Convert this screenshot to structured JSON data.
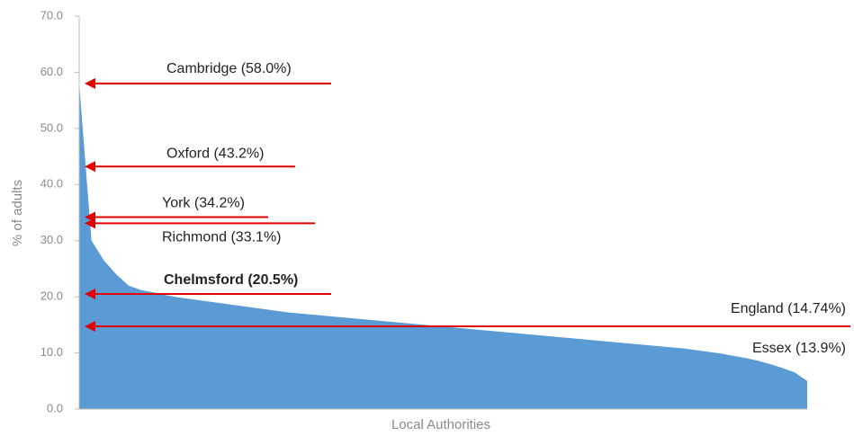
{
  "chart_data": {
    "type": "area",
    "xlabel": "Local Authorities",
    "ylabel": "% of adults",
    "color": "#5b9bd5",
    "arrow_color": "#e00000",
    "values": [
      58,
      30,
      26.5,
      24,
      22,
      21.2,
      20.8,
      20.3,
      19.9,
      19.6,
      19.3,
      19.0,
      18.7,
      18.4,
      18.1,
      17.8,
      17.5,
      17.2,
      17.0,
      16.8,
      16.6,
      16.4,
      16.2,
      16.0,
      15.8,
      15.6,
      15.4,
      15.2,
      15.0,
      14.8,
      14.6,
      14.4,
      14.2,
      14.0,
      13.8,
      13.6,
      13.4,
      13.2,
      13.0,
      12.8,
      12.6,
      12.4,
      12.2,
      12.0,
      11.8,
      11.6,
      11.4,
      11.2,
      11.0,
      10.8,
      10.5,
      10.2,
      9.9,
      9.5,
      9.1,
      8.6,
      8.0,
      7.3,
      6.5,
      5.0
    ],
    "ylim": [
      0,
      70
    ],
    "yticks": [
      {
        "value": 0,
        "label": "0.0"
      },
      {
        "value": 10,
        "label": "10.0"
      },
      {
        "value": 20,
        "label": "20.0"
      },
      {
        "value": 30,
        "label": "30.0"
      },
      {
        "value": 40,
        "label": "40.0"
      },
      {
        "value": 50,
        "label": "50.0"
      },
      {
        "value": 60,
        "label": "60.0"
      },
      {
        "value": 70,
        "label": "70.0"
      }
    ],
    "annotations": [
      {
        "label": "Cambridge (58.0%)",
        "value": 58.0
      },
      {
        "label": "Oxford (43.2%)",
        "value": 43.2
      },
      {
        "label": "York (34.2%)",
        "value": 34.2
      },
      {
        "label": "Richmond (33.1%)",
        "value": 33.1
      },
      {
        "label": "Chelmsford (20.5%)",
        "value": 20.5,
        "bold": true
      },
      {
        "label": "England (14.74%)",
        "value": 14.74
      },
      {
        "label": "Essex (13.9%)"
      }
    ]
  }
}
